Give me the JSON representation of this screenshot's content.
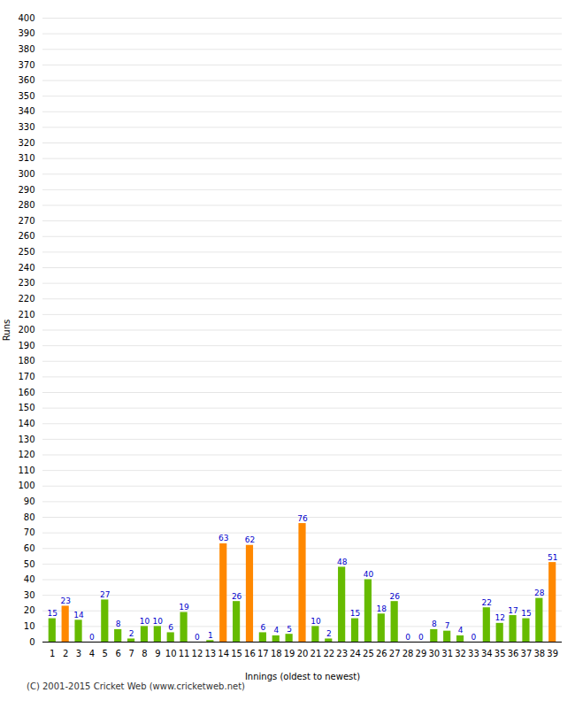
{
  "chart_data": {
    "type": "bar",
    "categories": [
      "1",
      "2",
      "3",
      "4",
      "5",
      "6",
      "7",
      "8",
      "9",
      "10",
      "11",
      "12",
      "13",
      "14",
      "15",
      "16",
      "17",
      "18",
      "19",
      "20",
      "21",
      "22",
      "23",
      "24",
      "25",
      "26",
      "27",
      "28",
      "29",
      "30",
      "31",
      "32",
      "33",
      "34",
      "35",
      "36",
      "37",
      "38",
      "39"
    ],
    "values": [
      15,
      23,
      14,
      0,
      27,
      8,
      2,
      10,
      10,
      6,
      19,
      0,
      1,
      63,
      26,
      62,
      6,
      4,
      5,
      76,
      10,
      2,
      48,
      15,
      40,
      18,
      26,
      0,
      0,
      8,
      7,
      4,
      0,
      22,
      12,
      17,
      15,
      28,
      51
    ],
    "colors": [
      "#66bb00",
      "#ff8800",
      "#66bb00",
      "#66bb00",
      "#66bb00",
      "#66bb00",
      "#66bb00",
      "#66bb00",
      "#66bb00",
      "#66bb00",
      "#66bb00",
      "#66bb00",
      "#66bb00",
      "#ff8800",
      "#66bb00",
      "#ff8800",
      "#66bb00",
      "#66bb00",
      "#66bb00",
      "#ff8800",
      "#66bb00",
      "#66bb00",
      "#66bb00",
      "#66bb00",
      "#66bb00",
      "#66bb00",
      "#66bb00",
      "#66bb00",
      "#66bb00",
      "#66bb00",
      "#66bb00",
      "#66bb00",
      "#66bb00",
      "#66bb00",
      "#66bb00",
      "#66bb00",
      "#66bb00",
      "#66bb00",
      "#ff8800"
    ],
    "xlabel": "Innings (oldest to newest)",
    "ylabel": "Runs",
    "ylim": [
      0,
      400
    ],
    "yticks": [
      0,
      10,
      20,
      30,
      40,
      50,
      60,
      70,
      80,
      90,
      100,
      110,
      120,
      130,
      140,
      150,
      160,
      170,
      180,
      190,
      200,
      210,
      220,
      230,
      240,
      250,
      260,
      270,
      280,
      290,
      300,
      310,
      320,
      330,
      340,
      350,
      360,
      370,
      380,
      390,
      400
    ],
    "grid": true,
    "data_labels": true,
    "caption": "(C) 2001-2015 Cricket Web (www.cricketweb.net)"
  }
}
